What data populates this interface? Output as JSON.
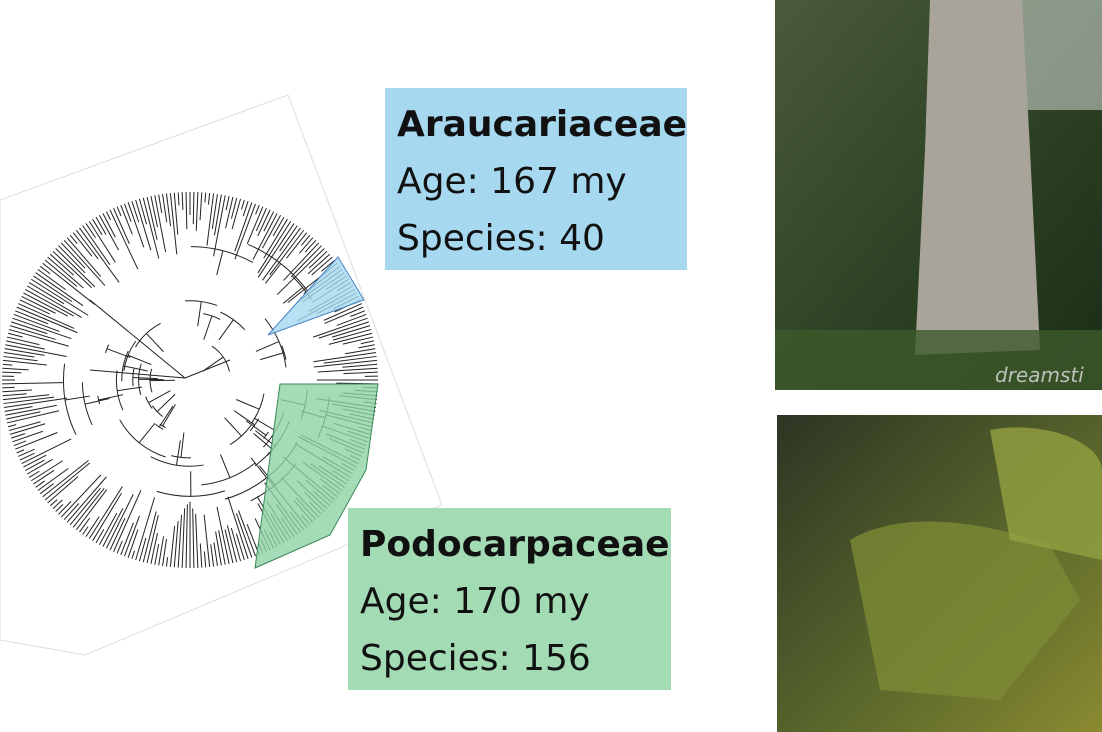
{
  "blue_box": {
    "title": "Araucariaceae",
    "age": "Age: 167 my",
    "species": "Species: 40"
  },
  "green_box": {
    "title": "Podocarpaceae",
    "age": "Age: 170 my",
    "species": "Species: 156"
  },
  "photo_watermark": "dreamsti"
}
